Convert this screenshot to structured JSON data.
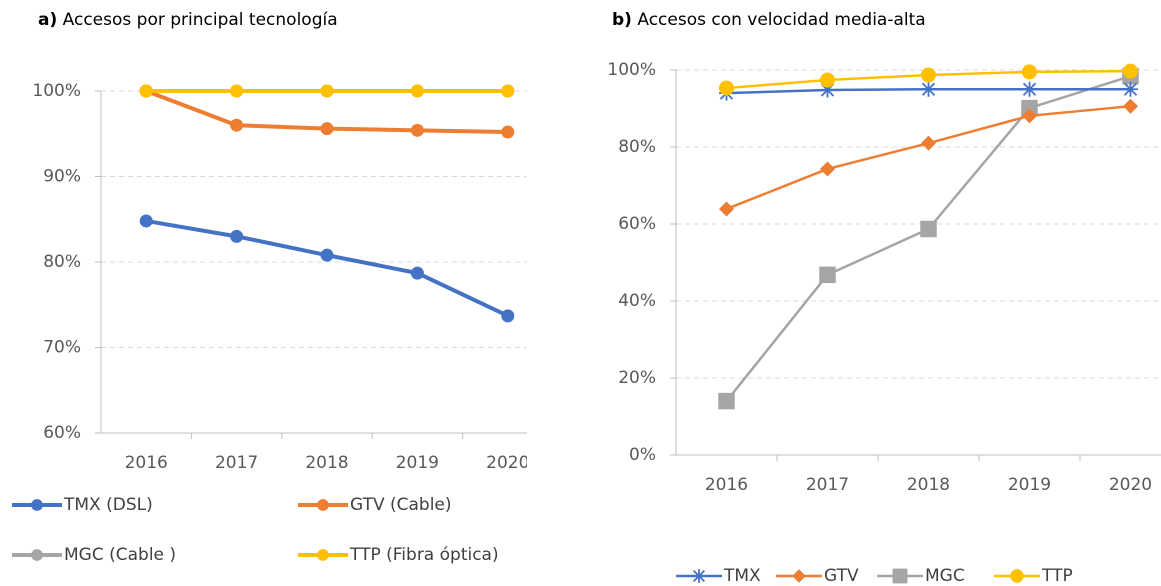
{
  "chart_data": [
    {
      "type": "line",
      "label": "a)",
      "title": "Accesos por principal tecnología",
      "categories": [
        "2016",
        "2017",
        "2018",
        "2019",
        "2020"
      ],
      "series": [
        {
          "name": "TMX (DSL)",
          "color": "#4472c4",
          "marker": "circle",
          "values": [
            84.8,
            83.0,
            80.8,
            78.7,
            73.7
          ]
        },
        {
          "name": "GTV (Cable)",
          "color": "#ed7d31",
          "marker": "circle",
          "values": [
            100,
            96.0,
            95.6,
            95.4,
            95.2
          ]
        },
        {
          "name": "MGC (Cable )",
          "color": "#a5a5a5",
          "marker": "circle",
          "values": [
            100,
            100,
            100,
            100,
            100
          ]
        },
        {
          "name": "TTP (Fibra óptica)",
          "color": "#ffc000",
          "marker": "circle",
          "values": [
            100,
            100,
            100,
            100,
            100
          ]
        }
      ],
      "ylim": [
        60,
        100
      ],
      "yticks": [
        {
          "value": 60,
          "label": "60%"
        },
        {
          "value": 70,
          "label": "70%"
        },
        {
          "value": 80,
          "label": "80%"
        },
        {
          "value": 90,
          "label": "90%"
        },
        {
          "value": 100,
          "label": "100%"
        }
      ],
      "grid": true
    },
    {
      "type": "line",
      "label": "b)",
      "title": "Accesos con velocidad media-alta",
      "categories": [
        "2016",
        "2017",
        "2018",
        "2019",
        "2020"
      ],
      "series": [
        {
          "name": "TMX",
          "color": "#4472c4",
          "marker": "star",
          "values": [
            94.0,
            94.8,
            95.0,
            95.0,
            95.0
          ]
        },
        {
          "name": "GTV",
          "color": "#ed7d31",
          "marker": "diamond",
          "values": [
            63.9,
            74.3,
            81.0,
            88.1,
            90.6
          ]
        },
        {
          "name": "MGC",
          "color": "#a5a5a5",
          "marker": "square",
          "values": [
            14.0,
            46.8,
            58.7,
            90.1,
            98.4
          ]
        },
        {
          "name": "TTP",
          "color": "#ffc000",
          "marker": "circle",
          "values": [
            95.3,
            97.4,
            98.7,
            99.5,
            99.7
          ]
        }
      ],
      "ylim": [
        0,
        100
      ],
      "yticks": [
        {
          "value": 0,
          "label": "0%"
        },
        {
          "value": 20,
          "label": "20%"
        },
        {
          "value": 40,
          "label": "40%"
        },
        {
          "value": 60,
          "label": "60%"
        },
        {
          "value": 80,
          "label": "80%"
        },
        {
          "value": 100,
          "label": "100%"
        }
      ],
      "grid": true
    }
  ]
}
